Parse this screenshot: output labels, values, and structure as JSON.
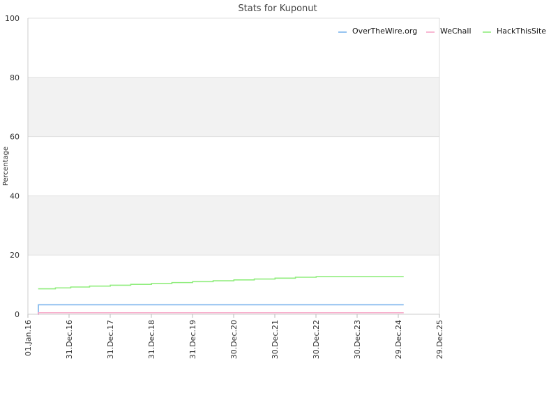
{
  "chart_data": {
    "type": "line",
    "title": "Stats for Kuponut",
    "xlabel": "",
    "ylabel": "Percentage",
    "ylim": [
      0,
      100
    ],
    "yticks": [
      0,
      20,
      40,
      60,
      80,
      100
    ],
    "xlim": [
      "2016-01-01",
      "2025-12-29"
    ],
    "xticks": [
      "2016-01-01",
      "2016-12-31",
      "2017-12-31",
      "2018-12-31",
      "2019-12-31",
      "2020-12-30",
      "2021-12-30",
      "2022-12-30",
      "2023-12-30",
      "2024-12-29",
      "2025-12-29"
    ],
    "xtick_labels": [
      "01.Jan.16",
      "31.Dec.16",
      "31.Dec.17",
      "31.Dec.18",
      "31.Dec.19",
      "30.Dec.20",
      "30.Dec.21",
      "30.Dec.22",
      "30.Dec.23",
      "29.Dec.24",
      "29.Dec.25"
    ],
    "alternating_bands": true,
    "legend_position": "top-right",
    "series": [
      {
        "name": "OverTheWire.org",
        "color": "#7cb5ec",
        "step": true,
        "points": [
          [
            "2016-04-01",
            0
          ],
          [
            "2016-04-03",
            3.2
          ],
          [
            "2025-02-15",
            3.2
          ]
        ]
      },
      {
        "name": "WeChall",
        "color": "#f7a6c8",
        "step": true,
        "points": [
          [
            "2016-04-01",
            0
          ],
          [
            "2016-04-03",
            0.5
          ],
          [
            "2025-02-15",
            0.5
          ]
        ]
      },
      {
        "name": "HackThisSite",
        "color": "#90ed7d",
        "step": true,
        "points": [
          [
            "2016-04-01",
            8.6
          ],
          [
            "2016-09-01",
            8.9
          ],
          [
            "2017-01-15",
            9.2
          ],
          [
            "2017-07-01",
            9.5
          ],
          [
            "2018-01-01",
            9.8
          ],
          [
            "2018-07-01",
            10.1
          ],
          [
            "2019-01-01",
            10.4
          ],
          [
            "2019-07-01",
            10.7
          ],
          [
            "2020-01-01",
            11.0
          ],
          [
            "2020-07-01",
            11.3
          ],
          [
            "2021-01-01",
            11.6
          ],
          [
            "2021-07-01",
            11.9
          ],
          [
            "2022-01-01",
            12.2
          ],
          [
            "2022-07-01",
            12.5
          ],
          [
            "2023-01-01",
            12.7
          ],
          [
            "2025-02-15",
            12.7
          ]
        ]
      }
    ]
  }
}
